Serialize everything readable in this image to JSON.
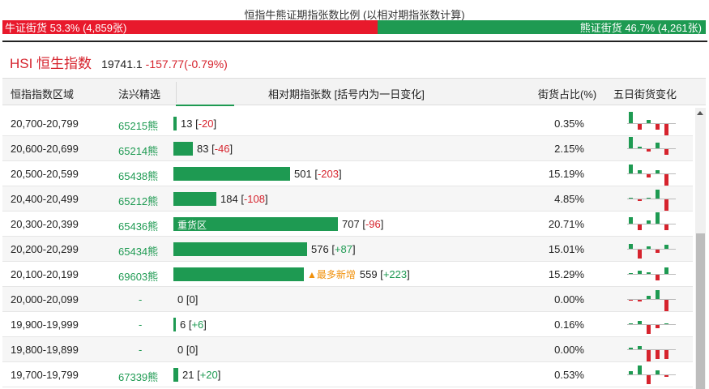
{
  "ratio": {
    "title": "恒指牛熊证期指张数比例 (以相对期指张数计算)",
    "bull_label": "牛证街货 53.3% (4,859张)",
    "bear_label": "熊证街货 46.7% (4,261张)",
    "bull_pct": 53.3,
    "bull_color": "#e8192c",
    "bear_color": "#1e9a52"
  },
  "index": {
    "name": "HSI 恒生指数",
    "value": "19741.1",
    "change": "-157.77(-0.79%)"
  },
  "table": {
    "headers": {
      "range": "恒指指数区域",
      "pick": "法兴精选",
      "contracts": "相对期指张数 [括号内为一日变化]",
      "share": "街货占比(%)",
      "five_day": "五日街货变化"
    },
    "max_contracts": 707,
    "rows": [
      {
        "range": "20,700-20,799",
        "code": "65215熊",
        "contracts": 13,
        "count": "13",
        "change": "-20",
        "share": "0.35%",
        "tag": "",
        "note": "",
        "spark": [
          2,
          -1,
          0.5,
          -1,
          -2
        ]
      },
      {
        "range": "20,600-20,699",
        "code": "65214熊",
        "contracts": 83,
        "count": "83",
        "change": "-46",
        "share": "2.15%",
        "tag": "",
        "note": "",
        "spark": [
          2,
          0.3,
          -0.4,
          1,
          -1
        ]
      },
      {
        "range": "20,500-20,599",
        "code": "65438熊",
        "contracts": 501,
        "count": "501",
        "change": "-203",
        "share": "15.19%",
        "tag": "",
        "note": "",
        "spark": [
          1.5,
          0.5,
          -0.5,
          0.6,
          -2
        ]
      },
      {
        "range": "20,400-20,499",
        "code": "65212熊",
        "contracts": 184,
        "count": "184",
        "change": "-108",
        "share": "4.85%",
        "tag": "",
        "note": "",
        "spark": [
          0.2,
          -0.3,
          0.2,
          1.5,
          -2
        ]
      },
      {
        "range": "20,300-20,399",
        "code": "65436熊",
        "contracts": 707,
        "count": "707",
        "change": "-96",
        "share": "20.71%",
        "tag": "重货区",
        "note": "",
        "spark": [
          1.2,
          -1,
          0.5,
          2,
          -1
        ]
      },
      {
        "range": "20,200-20,299",
        "code": "65434熊",
        "contracts": 576,
        "count": "576",
        "change": "+87",
        "share": "15.01%",
        "tag": "",
        "note": "",
        "spark": [
          0.8,
          -1.5,
          0.4,
          -0.6,
          0.7
        ]
      },
      {
        "range": "20,100-20,199",
        "code": "69603熊",
        "contracts": 559,
        "count": "559",
        "change": "+223",
        "share": "15.29%",
        "tag": "",
        "note": "▲最多新增",
        "spark": [
          0.2,
          0.6,
          0.3,
          -1,
          1.2
        ]
      },
      {
        "range": "20,000-20,099",
        "code": "-",
        "contracts": 0,
        "count": "0",
        "change": "0",
        "share": "0.00%",
        "tag": "",
        "note": "",
        "spark": [
          -0.2,
          -0.3,
          0.5,
          1.5,
          -2
        ]
      },
      {
        "range": "19,900-19,999",
        "code": "-",
        "contracts": 6,
        "count": "6",
        "change": "+6",
        "share": "0.16%",
        "tag": "",
        "note": "",
        "spark": [
          0.1,
          0.5,
          -1.5,
          -0.6,
          0.2
        ]
      },
      {
        "range": "19,800-19,899",
        "code": "-",
        "contracts": 0,
        "count": "0",
        "change": "0",
        "share": "0.00%",
        "tag": "",
        "note": "",
        "spark": [
          0.3,
          0.5,
          -2,
          -1.5,
          -1.5
        ]
      },
      {
        "range": "19,700-19,799",
        "code": "67339熊",
        "contracts": 21,
        "count": "21",
        "change": "+20",
        "share": "0.53%",
        "tag": "",
        "note": "",
        "spark": [
          0.6,
          1.5,
          -1.5,
          0.7,
          -0.3
        ]
      }
    ]
  }
}
